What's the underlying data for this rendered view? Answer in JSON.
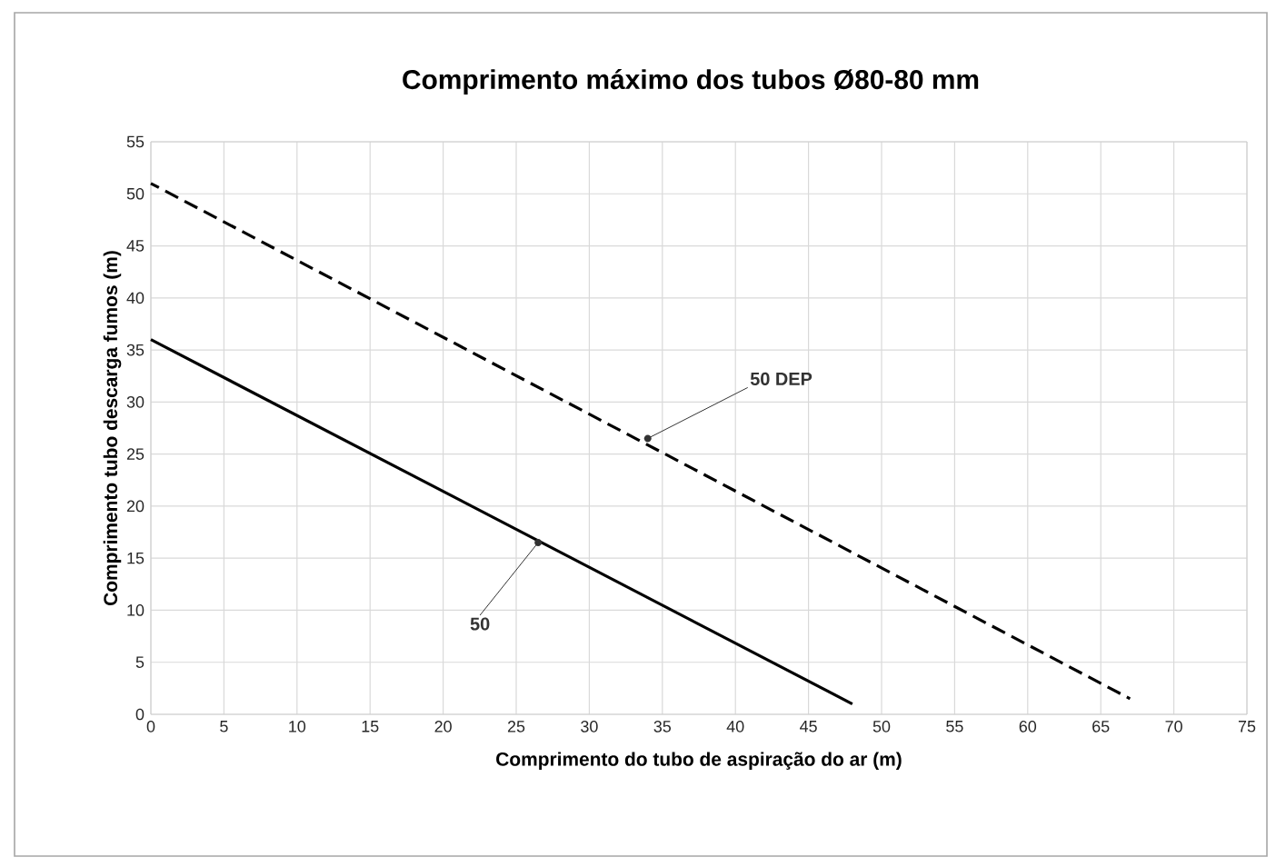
{
  "chart_data": {
    "type": "line",
    "title": "Comprimento máximo dos tubos Ø80-80 mm",
    "xlabel": "Comprimento do tubo de aspiração do ar (m)",
    "ylabel": "Comprimento tubo descarga fumos (m)",
    "xlim": [
      0,
      75
    ],
    "ylim": [
      0,
      55
    ],
    "xticks": [
      0,
      5,
      10,
      15,
      20,
      25,
      30,
      35,
      40,
      45,
      50,
      55,
      60,
      65,
      70,
      75
    ],
    "yticks": [
      0,
      5,
      10,
      15,
      20,
      25,
      30,
      35,
      40,
      45,
      50,
      55
    ],
    "grid": true,
    "marker": "none",
    "series": [
      {
        "color": "#000000",
        "line_style": "solid",
        "x": [
          0,
          48
        ],
        "values": [
          36,
          1
        ]
      },
      {
        "color": "#000000",
        "line_style": "dashed",
        "x": [
          0,
          67
        ],
        "values": [
          51,
          1.5
        ]
      }
    ],
    "annotations": [
      {
        "text": "50",
        "x": 26.5,
        "y": 16.5
      },
      {
        "text": "50 DEP",
        "x": 34,
        "y": 26.5
      }
    ]
  }
}
